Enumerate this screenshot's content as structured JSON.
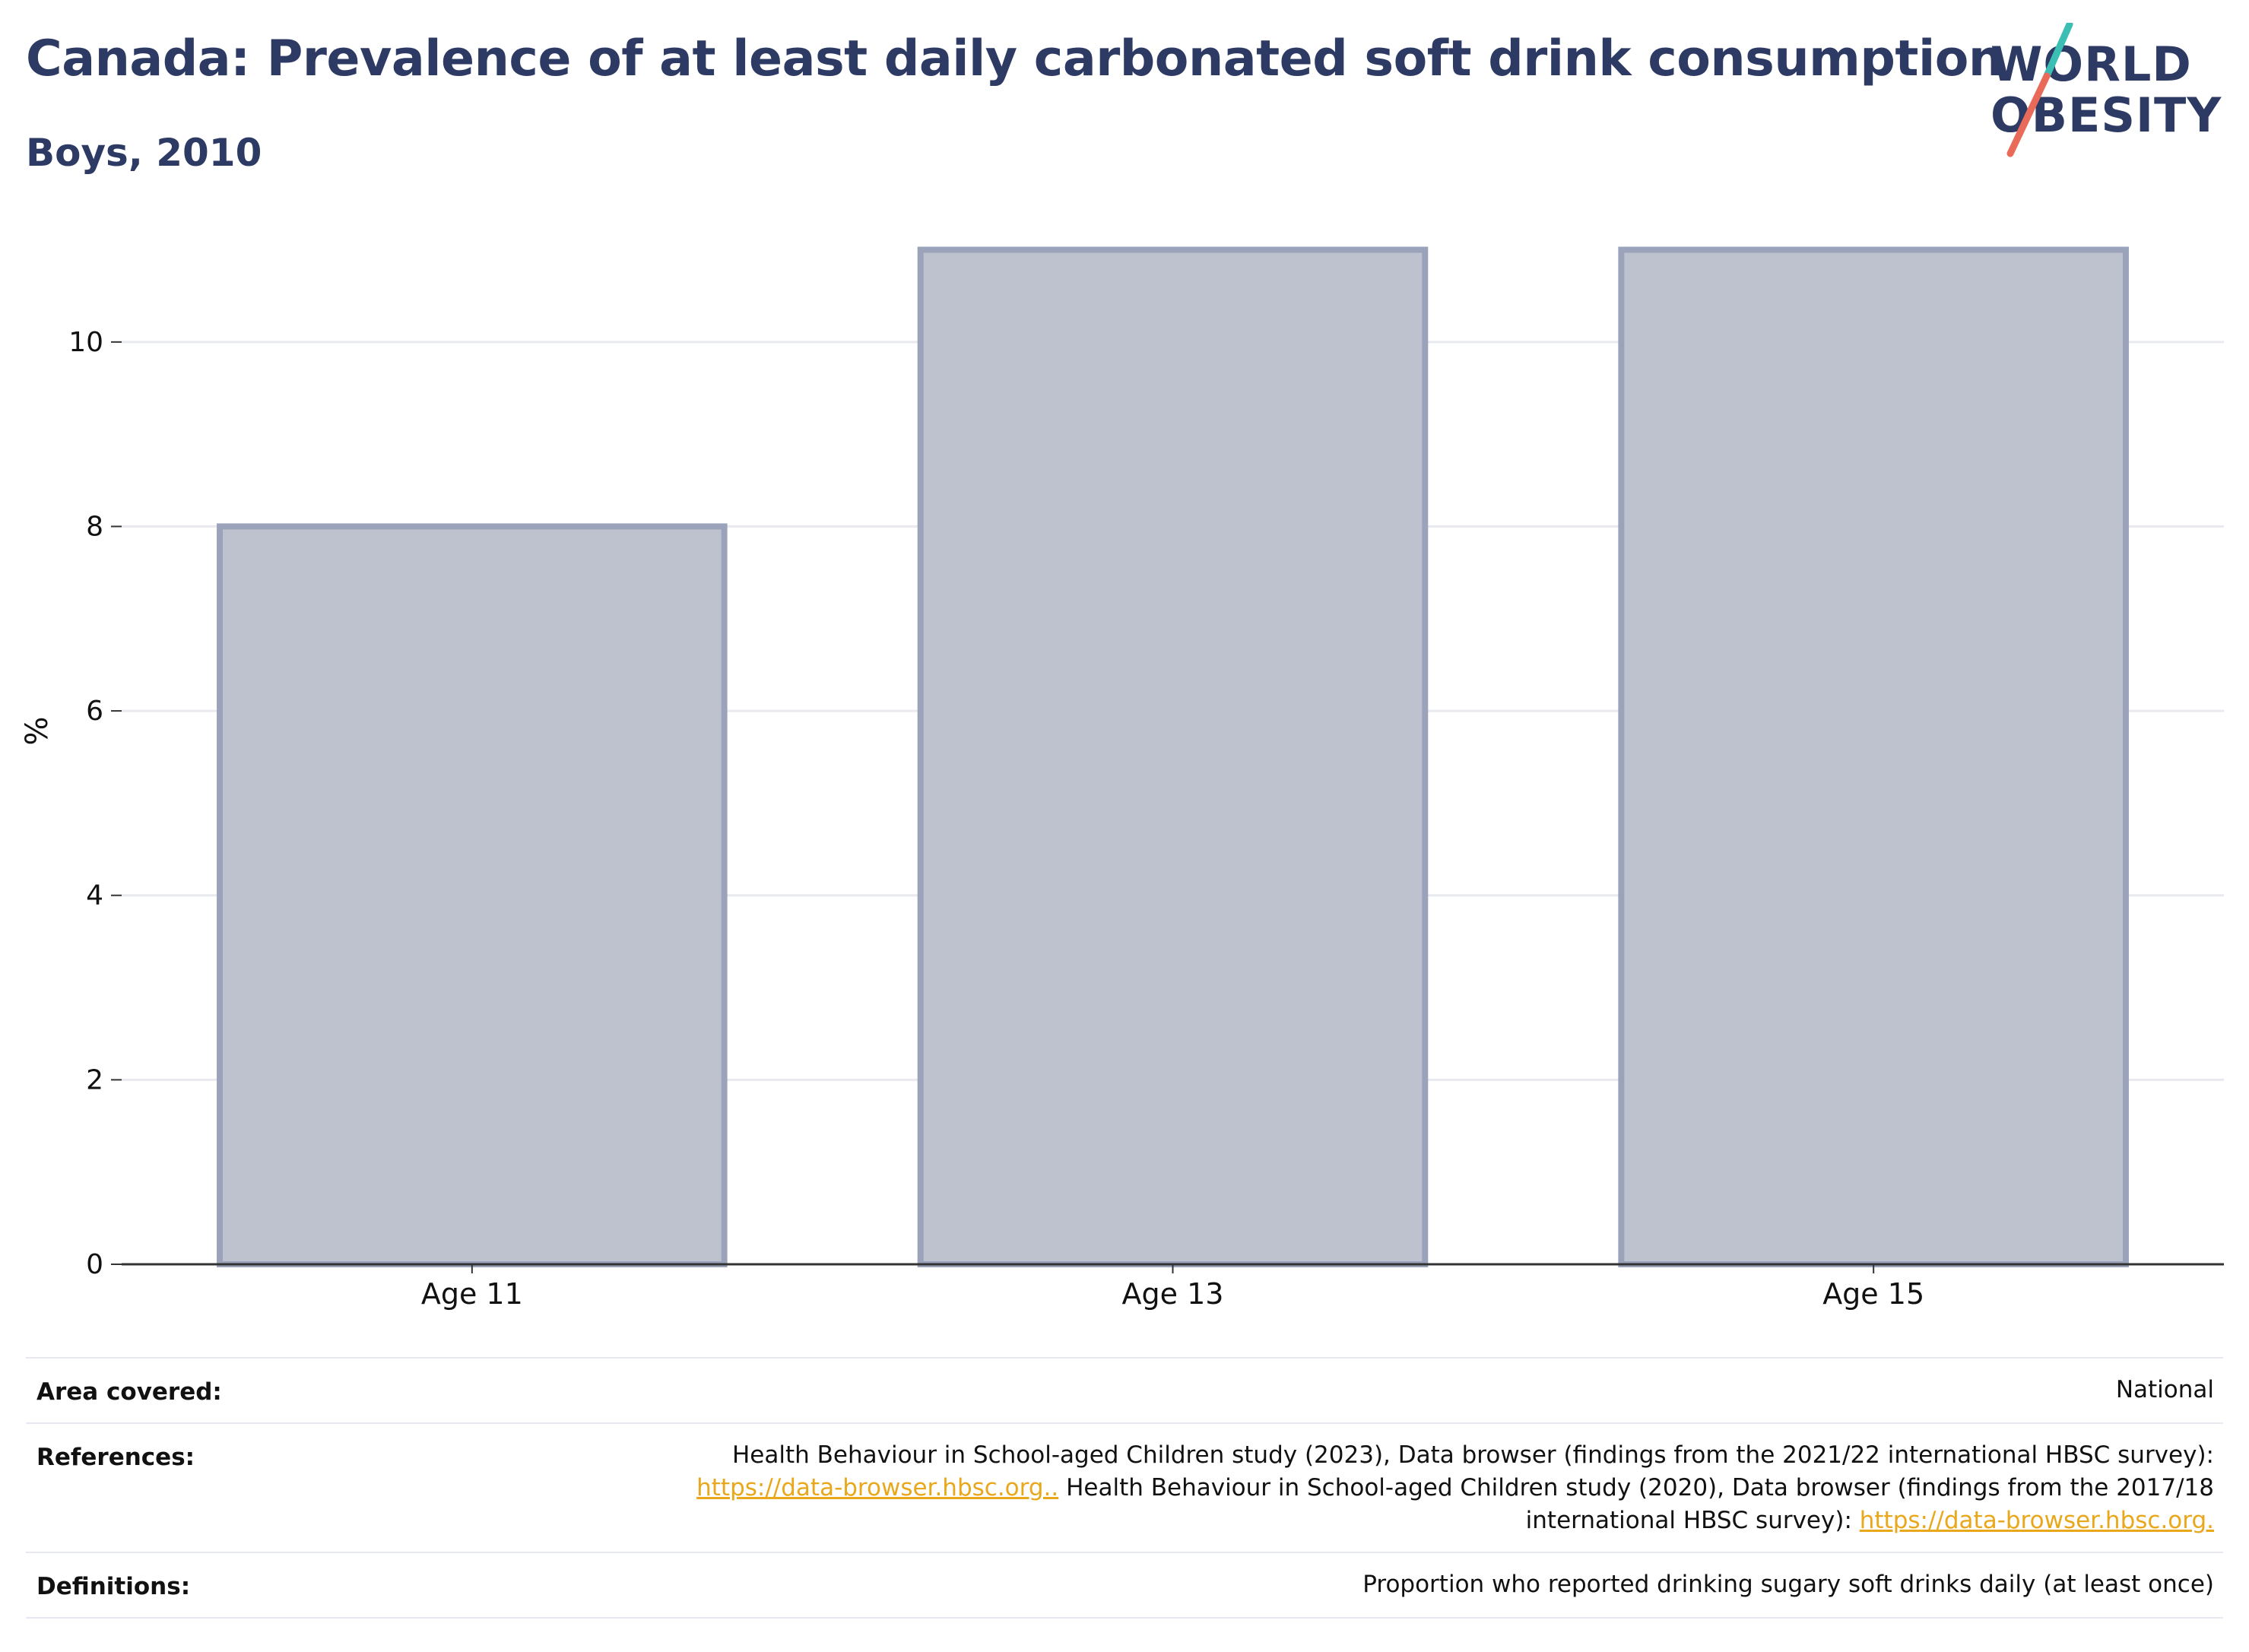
{
  "header": {
    "title": "Canada: Prevalence of at least daily carbonated soft drink consumption",
    "subtitle": "Boys, 2010"
  },
  "logo": {
    "line1": "WORLD",
    "line2": "OBESITY",
    "colors": {
      "teal": "#3bbfb4",
      "coral": "#ea6a5a",
      "navy": "#2d3a64"
    }
  },
  "chart_data": {
    "type": "bar",
    "categories": [
      "Age 11",
      "Age 13",
      "Age 15"
    ],
    "values": [
      8,
      11,
      11
    ],
    "ylabel": "%",
    "ylim": [
      0,
      11.4
    ],
    "yticks": [
      0,
      2,
      4,
      6,
      8,
      10
    ],
    "grid": true,
    "bar_fill": "#bec2cf",
    "bar_stroke": "#9ba3bb",
    "axis_color": "#333333",
    "grid_color": "#e8eaef"
  },
  "info": {
    "area": {
      "label": "Area covered:",
      "value": "National"
    },
    "references": {
      "label": "References:",
      "line1": "Health Behaviour in School-aged Children study (2023), Data browser (findings from the 2021/22 international HBSC survey):",
      "link1": "https://data-browser.hbsc.org..",
      "line2b": " Health Behaviour in School-aged Children study (2020), Data browser (findings from the 2017/18",
      "line3": "international HBSC survey): ",
      "link2": "https://data-browser.hbsc.org."
    },
    "definitions": {
      "label": "Definitions:",
      "value": "Proportion who reported drinking sugary soft drinks daily (at least once)"
    }
  }
}
